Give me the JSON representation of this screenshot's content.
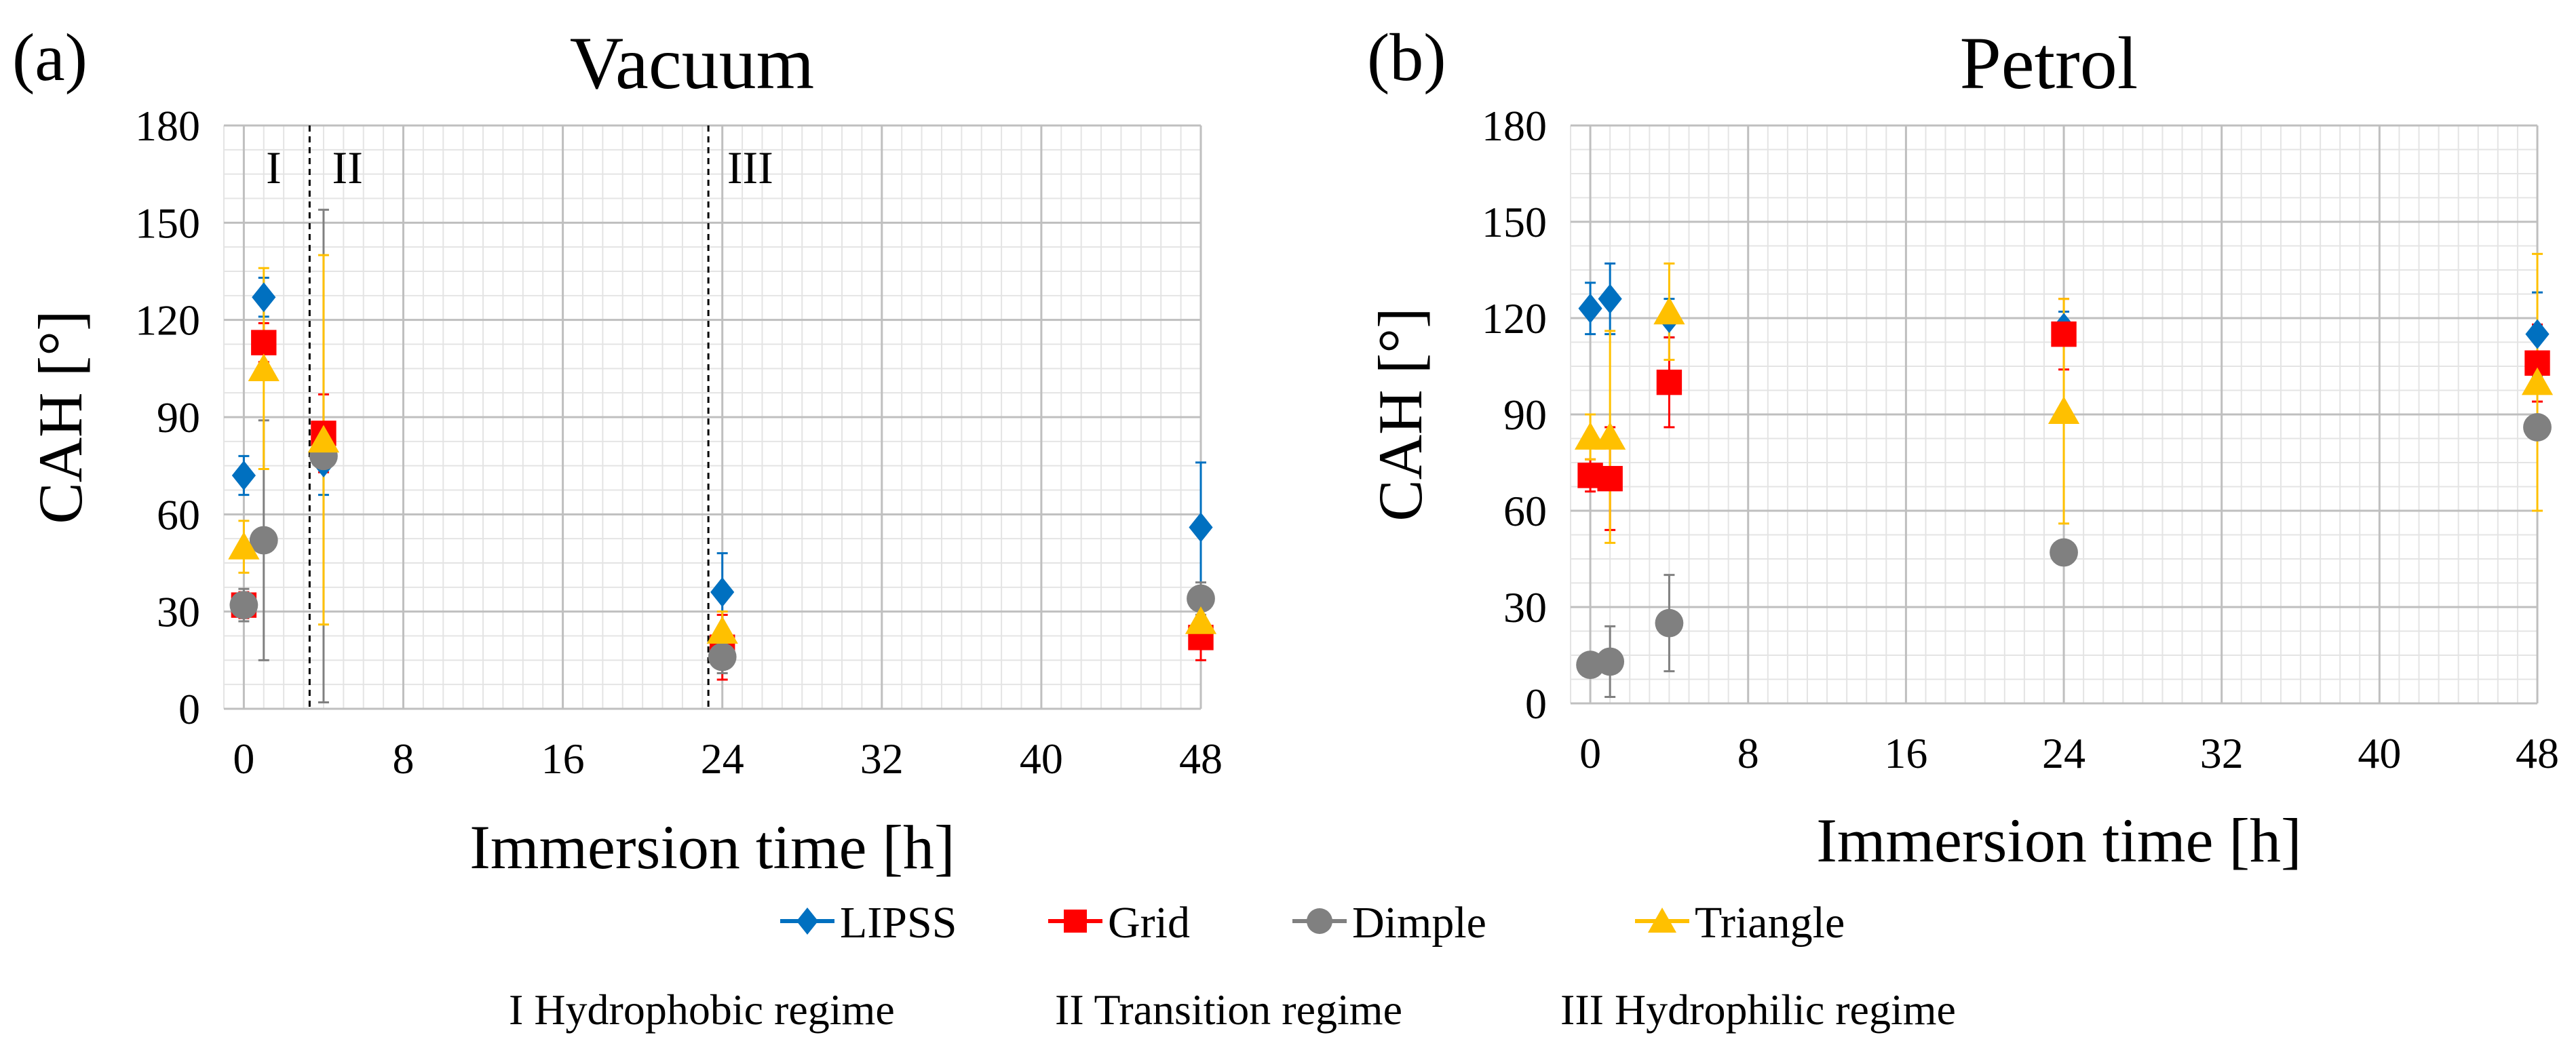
{
  "chart_data": [
    {
      "type": "scatter",
      "panel_label": "(a)",
      "title": "Vacuum",
      "xlabel": "Immersion time [h]",
      "ylabel": "CAH [°]",
      "xlim": [
        -1,
        48
      ],
      "ylim": [
        0,
        180
      ],
      "x_major_ticks": [
        0,
        8,
        16,
        24,
        32,
        40,
        48
      ],
      "y_major_ticks": [
        0,
        30,
        60,
        90,
        120,
        150,
        180
      ],
      "grid": true,
      "regions": [
        {
          "label": "I",
          "x": 1.5
        },
        {
          "label": "II",
          "x": 5.2
        },
        {
          "label": "III",
          "x": 25.4
        }
      ],
      "boundaries": [
        3.3,
        23.3
      ],
      "series": [
        {
          "name": "LIPSS",
          "marker": "diamond",
          "color": "#0070C0",
          "points": [
            {
              "x": 0,
              "y": 72,
              "err": 6
            },
            {
              "x": 1,
              "y": 127,
              "err": 6
            },
            {
              "x": 4,
              "y": 76,
              "err": 10
            },
            {
              "x": 24,
              "y": 36,
              "err": 12
            },
            {
              "x": 48,
              "y": 56,
              "err": 20
            }
          ]
        },
        {
          "name": "Grid",
          "marker": "square",
          "color": "#FF0000",
          "points": [
            {
              "x": 0,
              "y": 32,
              "err": 4
            },
            {
              "x": 1,
              "y": 113,
              "err": 6
            },
            {
              "x": 4,
              "y": 85,
              "err": 12
            },
            {
              "x": 24,
              "y": 19,
              "err": 10
            },
            {
              "x": 48,
              "y": 22,
              "err": 7
            }
          ]
        },
        {
          "name": "Dimple",
          "marker": "circle",
          "color": "#808080",
          "points": [
            {
              "x": 0,
              "y": 32,
              "err": 5
            },
            {
              "x": 1,
              "y": 52,
              "err": 37
            },
            {
              "x": 4,
              "y": 78,
              "err": 76
            },
            {
              "x": 24,
              "y": 16,
              "err": 5
            },
            {
              "x": 48,
              "y": 34,
              "err": 5
            }
          ]
        },
        {
          "name": "Triangle",
          "marker": "triangle",
          "color": "#FFC000",
          "points": [
            {
              "x": 0,
              "y": 50,
              "err": 8
            },
            {
              "x": 1,
              "y": 105,
              "err": 31
            },
            {
              "x": 4,
              "y": 83,
              "err": 57
            },
            {
              "x": 24,
              "y": 24,
              "err": 6
            },
            {
              "x": 48,
              "y": 27,
              "err": 7
            }
          ]
        }
      ]
    },
    {
      "type": "scatter",
      "panel_label": "(b)",
      "title": "Petrol",
      "xlabel": "Immersion time [h]",
      "ylabel": "CAH [°]",
      "xlim": [
        -1,
        48
      ],
      "ylim": [
        0,
        180
      ],
      "x_major_ticks": [
        0,
        8,
        16,
        24,
        32,
        40,
        48
      ],
      "y_major_ticks": [
        0,
        30,
        60,
        90,
        120,
        150,
        180
      ],
      "grid": true,
      "series": [
        {
          "name": "LIPSS",
          "marker": "diamond",
          "color": "#0070C0",
          "points": [
            {
              "x": 0,
              "y": 123,
              "err": 8
            },
            {
              "x": 1,
              "y": 126,
              "err": 11
            },
            {
              "x": 4,
              "y": 120,
              "err": 6
            },
            {
              "x": 24,
              "y": 117,
              "err": 5
            },
            {
              "x": 48,
              "y": 115,
              "err": 13
            }
          ]
        },
        {
          "name": "Grid",
          "marker": "square",
          "color": "#FF0000",
          "points": [
            {
              "x": 0,
              "y": 71,
              "err": 5
            },
            {
              "x": 1,
              "y": 70,
              "err": 16
            },
            {
              "x": 4,
              "y": 100,
              "err": 14
            },
            {
              "x": 24,
              "y": 115,
              "err": 11
            },
            {
              "x": 48,
              "y": 106,
              "err": 12
            }
          ]
        },
        {
          "name": "Dimple",
          "marker": "circle",
          "color": "#808080",
          "points": [
            {
              "x": 0,
              "y": 12,
              "err": 2
            },
            {
              "x": 1,
              "y": 13,
              "err": 11
            },
            {
              "x": 4,
              "y": 25,
              "err": 15
            },
            {
              "x": 24,
              "y": 47,
              "err": 2
            },
            {
              "x": 48,
              "y": 86,
              "err": 3
            }
          ]
        },
        {
          "name": "Triangle",
          "marker": "triangle",
          "color": "#FFC000",
          "points": [
            {
              "x": 0,
              "y": 83,
              "err": 7
            },
            {
              "x": 1,
              "y": 83,
              "err": 33
            },
            {
              "x": 4,
              "y": 122,
              "err": 15
            },
            {
              "x": 24,
              "y": 91,
              "err": 35
            },
            {
              "x": 48,
              "y": 100,
              "err": 40
            }
          ]
        }
      ]
    }
  ],
  "legend": {
    "entries": [
      {
        "name": "LIPSS",
        "marker": "diamond",
        "color": "#0070C0"
      },
      {
        "name": "Grid",
        "marker": "square",
        "color": "#FF0000"
      },
      {
        "name": "Dimple",
        "marker": "circle",
        "color": "#808080"
      },
      {
        "name": "Triangle",
        "marker": "triangle",
        "color": "#FFC000"
      }
    ],
    "placement": "bottom-center"
  },
  "regime_legend": [
    "I Hydrophobic regime",
    "II Transition regime",
    "III Hydrophilic regime"
  ]
}
